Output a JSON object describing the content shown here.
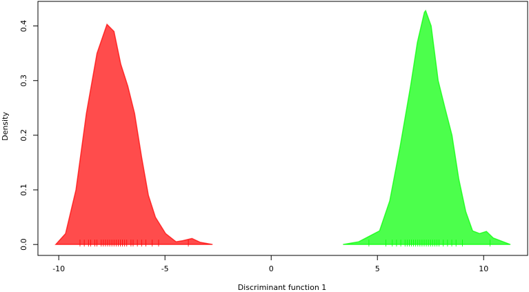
{
  "chart_data": {
    "type": "density",
    "x_label": "Discriminant function 1",
    "y_label": "Density",
    "xlim": [
      -10.98,
      12.07
    ],
    "ylim": [
      -0.02,
      0.445
    ],
    "xticks": [
      -10,
      -5,
      0,
      5,
      10
    ],
    "yticks": [
      {
        "value": 0,
        "label": "0.0"
      },
      0.1,
      0.2,
      0.3,
      0.4
    ],
    "series": [
      {
        "color": "#ff0000",
        "x": [
          -10.14,
          -9.68,
          -9.19,
          -8.7,
          -8.2,
          -7.73,
          -7.4,
          -7.08,
          -6.75,
          -6.43,
          -6.1,
          -5.78,
          -5.45,
          -4.97,
          -4.48,
          -4.16,
          -3.73,
          -3.34,
          -2.76
        ],
        "values": [
          0,
          0.02,
          0.1,
          0.24,
          0.35,
          0.403,
          0.39,
          0.33,
          0.29,
          0.24,
          0.16,
          0.09,
          0.05,
          0.02,
          0.005,
          0.007,
          0.011,
          0.004,
          0
        ],
        "rug": [
          -9.0,
          -8.8,
          -8.6,
          -8.5,
          -8.3,
          -8.2,
          -8.0,
          -7.9,
          -7.8,
          -7.7,
          -7.6,
          -7.5,
          -7.4,
          -7.3,
          -7.2,
          -7.1,
          -7.0,
          -6.9,
          -6.8,
          -6.6,
          -6.5,
          -6.3,
          -6.1,
          -5.9,
          -5.6,
          -5.3,
          -3.9
        ]
      },
      {
        "color": "#00ff00",
        "x": [
          3.38,
          4.12,
          4.61,
          5.1,
          5.58,
          6.07,
          6.56,
          6.88,
          7.21,
          7.27,
          7.53,
          7.86,
          8.18,
          8.51,
          8.83,
          9.16,
          9.48,
          9.81,
          10.13,
          10.45,
          11.26
        ],
        "values": [
          0,
          0.005,
          0.015,
          0.025,
          0.08,
          0.18,
          0.29,
          0.37,
          0.425,
          0.428,
          0.4,
          0.3,
          0.25,
          0.2,
          0.12,
          0.06,
          0.025,
          0.02,
          0.024,
          0.012,
          0
        ],
        "rug": [
          4.6,
          5.4,
          5.7,
          5.9,
          6.1,
          6.3,
          6.4,
          6.5,
          6.6,
          6.7,
          6.8,
          6.9,
          7.0,
          7.1,
          7.2,
          7.3,
          7.4,
          7.5,
          7.6,
          7.7,
          7.8,
          7.9,
          8.1,
          8.3,
          8.5,
          8.7,
          9.0,
          10.3
        ]
      }
    ]
  }
}
